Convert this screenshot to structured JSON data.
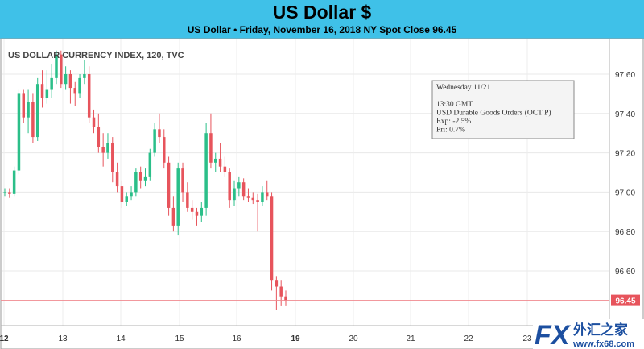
{
  "header": {
    "title": "US Dollar $",
    "subtitle": "US Dollar • Friday, November 16, 2018 NY Spot Close 96.45"
  },
  "chart_data": {
    "type": "candlestick",
    "title": "US DOLLAR CURRENCY INDEX, 120, TVC",
    "y_ticks": [
      96.6,
      96.8,
      97.0,
      97.2,
      97.4,
      97.6
    ],
    "y_tick_labels": [
      "96.60",
      "96.80",
      "97.00",
      "97.20",
      "97.40",
      "97.60"
    ],
    "ylim": [
      96.38,
      97.76
    ],
    "x_tick_labels": [
      "12",
      "13",
      "14",
      "15",
      "16",
      "19",
      "20",
      "21",
      "22",
      "23"
    ],
    "last_price": 96.45,
    "last_price_label": "96.45",
    "up_color": "#2bbf89",
    "down_color": "#e7545c",
    "candles": [
      [
        97.0,
        97.02,
        96.98,
        97.0
      ],
      [
        97.0,
        97.02,
        96.97,
        96.99
      ],
      [
        96.99,
        97.13,
        96.98,
        97.11
      ],
      [
        97.11,
        97.52,
        97.09,
        97.5
      ],
      [
        97.5,
        97.52,
        97.35,
        97.38
      ],
      [
        97.38,
        97.52,
        97.3,
        97.46
      ],
      [
        97.46,
        97.5,
        97.25,
        97.28
      ],
      [
        97.28,
        97.58,
        97.26,
        97.55
      ],
      [
        97.55,
        97.62,
        97.43,
        97.48
      ],
      [
        97.48,
        97.62,
        97.45,
        97.52
      ],
      [
        97.52,
        97.65,
        97.48,
        97.58
      ],
      [
        97.58,
        97.72,
        97.55,
        97.7
      ],
      [
        97.7,
        97.72,
        97.53,
        97.55
      ],
      [
        97.55,
        97.64,
        97.52,
        97.6
      ],
      [
        97.6,
        97.62,
        97.45,
        97.53
      ],
      [
        97.53,
        97.56,
        97.44,
        97.5
      ],
      [
        97.5,
        97.6,
        97.48,
        97.58
      ],
      [
        97.58,
        97.67,
        97.55,
        97.6
      ],
      [
        97.6,
        97.64,
        97.35,
        97.38
      ],
      [
        97.38,
        97.42,
        97.3,
        97.33
      ],
      [
        97.33,
        97.4,
        97.2,
        97.23
      ],
      [
        97.23,
        97.3,
        97.13,
        97.2
      ],
      [
        97.2,
        97.3,
        97.17,
        97.25
      ],
      [
        97.25,
        97.28,
        97.05,
        97.1
      ],
      [
        97.1,
        97.15,
        97.0,
        97.03
      ],
      [
        97.03,
        97.06,
        96.92,
        96.95
      ],
      [
        96.95,
        97.0,
        96.93,
        96.98
      ],
      [
        96.98,
        97.03,
        96.96,
        97.0
      ],
      [
        97.0,
        97.12,
        96.98,
        97.1
      ],
      [
        97.1,
        97.13,
        97.02,
        97.06
      ],
      [
        97.06,
        97.12,
        97.03,
        97.08
      ],
      [
        97.08,
        97.22,
        97.06,
        97.2
      ],
      [
        97.2,
        97.35,
        97.18,
        97.32
      ],
      [
        97.32,
        97.4,
        97.25,
        97.28
      ],
      [
        97.28,
        97.32,
        97.12,
        97.15
      ],
      [
        97.15,
        97.18,
        96.88,
        96.92
      ],
      [
        96.92,
        96.98,
        96.8,
        96.83
      ],
      [
        96.83,
        97.15,
        96.78,
        97.12
      ],
      [
        97.12,
        97.15,
        96.95,
        97.0
      ],
      [
        97.0,
        97.05,
        96.9,
        96.92
      ],
      [
        96.92,
        96.96,
        96.86,
        96.9
      ],
      [
        96.9,
        96.92,
        96.83,
        96.88
      ],
      [
        96.88,
        96.95,
        96.85,
        96.92
      ],
      [
        96.92,
        97.35,
        96.88,
        97.3
      ],
      [
        97.3,
        97.4,
        97.12,
        97.15
      ],
      [
        97.15,
        97.2,
        97.1,
        97.17
      ],
      [
        97.17,
        97.25,
        97.1,
        97.13
      ],
      [
        97.13,
        97.18,
        97.08,
        97.1
      ],
      [
        97.1,
        97.12,
        96.92,
        96.96
      ],
      [
        96.96,
        97.06,
        96.93,
        97.02
      ],
      [
        97.02,
        97.08,
        96.98,
        97.05
      ],
      [
        97.05,
        97.07,
        96.96,
        96.98
      ],
      [
        96.98,
        97.02,
        96.95,
        96.97
      ],
      [
        96.97,
        97.0,
        96.94,
        96.96
      ],
      [
        96.96,
        96.99,
        96.8,
        96.95
      ],
      [
        96.95,
        97.03,
        96.93,
        97.0
      ],
      [
        97.0,
        97.06,
        96.96,
        96.98
      ],
      [
        96.98,
        97.0,
        96.5,
        96.55
      ],
      [
        96.55,
        96.57,
        96.4,
        96.52
      ],
      [
        96.52,
        96.55,
        96.42,
        96.47
      ],
      [
        96.47,
        96.5,
        96.42,
        96.45
      ]
    ],
    "x_axis_labels_extra": [],
    "annotation": {
      "lines": [
        "Wednesday 11/21",
        "",
        "13:30 GMT",
        "USD Durable Goods Orders (OCT P)",
        "Exp: -2.5%",
        "Pri: 0.7%"
      ]
    },
    "grid": true
  },
  "watermark": {
    "logo_text": "FX",
    "cn_text": "外汇之家",
    "site_text": "www.fx68.com"
  }
}
